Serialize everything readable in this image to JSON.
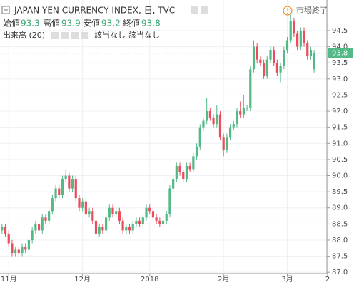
{
  "chart_data": {
    "type": "candlestick",
    "title": "JAPAN YEN CURRENCY INDEX, 日, TVC",
    "readout_labels": [
      "始値",
      "高値",
      "安値",
      "終値"
    ],
    "volume_label": "出来高 (20)",
    "volume_values": [
      "該当なし",
      "該当なし"
    ],
    "status": "市場終了",
    "up_color": "#53b987",
    "down_color": "#eb4d5c",
    "grid": true,
    "xlim": [
      -0.6,
      96.8
    ],
    "xticks": [
      {
        "value": 2,
        "label": "11月"
      },
      {
        "value": 24,
        "label": "12月"
      },
      {
        "value": 44,
        "label": "2018"
      },
      {
        "value": 66,
        "label": "2月"
      },
      {
        "value": 85,
        "label": "3月"
      },
      {
        "value": 97,
        "label": "2"
      }
    ],
    "ylim": [
      86.96,
      95.45
    ],
    "yticks": [
      {
        "value": 87,
        "label": "87.0"
      },
      87.5,
      {
        "value": 88,
        "label": "88.0"
      },
      88.5,
      {
        "value": 89,
        "label": "89.0"
      },
      89.5,
      {
        "value": 90,
        "label": "90.0"
      },
      90.5,
      {
        "value": 91,
        "label": "91.0"
      },
      91.5,
      {
        "value": 92,
        "label": "92.0"
      },
      92.5,
      {
        "value": 93,
        "label": "93.0"
      },
      93.5,
      {
        "value": 94,
        "label": "94.0"
      },
      94.5
    ],
    "open": [
      88.3,
      88.4,
      88.2,
      87.9,
      87.6,
      87.7,
      87.6,
      87.8,
      87.7,
      88.0,
      88.3,
      88.5,
      88.3,
      88.7,
      88.6,
      88.9,
      89.3,
      89.6,
      89.4,
      89.9,
      90.0,
      89.6,
      89.9,
      89.3,
      89.0,
      89.2,
      88.8,
      88.9,
      88.6,
      88.2,
      88.4,
      88.3,
      88.7,
      89.0,
      88.8,
      88.9,
      88.6,
      88.3,
      88.4,
      88.3,
      88.5,
      88.6,
      88.5,
      88.7,
      89.0,
      88.9,
      88.7,
      88.6,
      88.5,
      88.6,
      88.8,
      89.6,
      89.9,
      90.3,
      90.1,
      89.9,
      90.3,
      90.2,
      90.6,
      90.9,
      91.5,
      91.7,
      92.0,
      91.8,
      91.6,
      91.9,
      91.2,
      90.8,
      91.2,
      91.5,
      91.6,
      92.0,
      91.9,
      92.1,
      92.1,
      93.3,
      94.0,
      93.6,
      93.5,
      93.1,
      93.6,
      93.9,
      93.5,
      93.2,
      93.4,
      93.9,
      94.2,
      94.8,
      94.4,
      94.0,
      94.5,
      94.1,
      93.7,
      93.3
    ],
    "high": [
      88.5,
      88.5,
      88.3,
      88.0,
      87.8,
      87.8,
      87.9,
      87.9,
      88.1,
      88.4,
      88.6,
      88.6,
      88.8,
      88.8,
      89.0,
      89.4,
      89.7,
      89.7,
      90.0,
      90.2,
      90.1,
      90.0,
      90.0,
      89.4,
      89.3,
      89.3,
      89.0,
      89.0,
      88.7,
      88.5,
      88.5,
      88.8,
      89.1,
      89.1,
      89.0,
      89.0,
      88.7,
      88.5,
      88.5,
      88.6,
      88.7,
      88.7,
      88.8,
      89.1,
      89.1,
      89.0,
      88.8,
      88.7,
      88.7,
      88.9,
      89.7,
      90.0,
      90.4,
      90.4,
      90.2,
      90.4,
      90.4,
      90.7,
      91.0,
      91.6,
      91.8,
      92.4,
      92.1,
      91.9,
      92.2,
      92.0,
      91.3,
      91.3,
      91.6,
      91.7,
      92.1,
      92.3,
      92.5,
      92.2,
      93.4,
      94.2,
      94.1,
      93.7,
      93.6,
      93.7,
      94.0,
      94.0,
      93.6,
      93.5,
      94.0,
      94.3,
      95.0,
      94.9,
      94.5,
      94.6,
      94.6,
      94.2,
      94.0,
      93.9
    ],
    "low": [
      88.2,
      88.1,
      87.8,
      87.5,
      87.5,
      87.5,
      87.5,
      87.6,
      87.6,
      87.9,
      88.2,
      88.2,
      88.2,
      88.5,
      88.5,
      88.8,
      89.2,
      89.3,
      89.3,
      89.8,
      89.5,
      89.5,
      89.2,
      88.9,
      88.9,
      88.7,
      88.7,
      88.5,
      88.1,
      88.1,
      88.2,
      88.2,
      88.6,
      88.7,
      88.7,
      88.5,
      88.2,
      88.2,
      88.2,
      88.2,
      88.4,
      88.4,
      88.4,
      88.6,
      88.8,
      88.6,
      88.5,
      88.4,
      88.4,
      88.5,
      88.7,
      89.5,
      89.8,
      90.0,
      89.8,
      89.8,
      90.1,
      90.1,
      90.5,
      90.8,
      91.4,
      91.6,
      91.7,
      91.5,
      91.5,
      91.1,
      90.6,
      90.7,
      91.1,
      91.4,
      91.5,
      91.8,
      91.8,
      92.0,
      92.0,
      93.2,
      93.5,
      93.4,
      93.0,
      93.0,
      93.5,
      93.4,
      93.1,
      92.9,
      93.3,
      93.8,
      94.1,
      94.3,
      93.9,
      93.9,
      94.0,
      93.6,
      93.6,
      93.2
    ],
    "close": [
      88.4,
      88.2,
      87.9,
      87.6,
      87.7,
      87.6,
      87.8,
      87.7,
      88.0,
      88.3,
      88.5,
      88.3,
      88.7,
      88.6,
      88.9,
      89.3,
      89.6,
      89.4,
      89.9,
      90.0,
      89.6,
      89.9,
      89.3,
      89.0,
      89.2,
      88.8,
      88.9,
      88.6,
      88.2,
      88.4,
      88.3,
      88.7,
      89.0,
      88.8,
      88.9,
      88.6,
      88.3,
      88.4,
      88.3,
      88.5,
      88.6,
      88.5,
      88.7,
      89.0,
      88.9,
      88.7,
      88.6,
      88.5,
      88.6,
      88.8,
      89.6,
      89.9,
      90.3,
      90.1,
      89.9,
      90.3,
      90.2,
      90.6,
      90.9,
      91.5,
      91.7,
      92.0,
      91.8,
      91.6,
      91.9,
      91.2,
      90.8,
      91.2,
      91.5,
      91.6,
      92.0,
      91.9,
      92.1,
      92.1,
      93.3,
      94.0,
      93.6,
      93.5,
      93.1,
      93.6,
      93.9,
      93.5,
      93.2,
      93.4,
      93.9,
      94.2,
      94.8,
      94.4,
      94.0,
      94.5,
      94.1,
      93.7,
      93.9,
      93.8
    ]
  }
}
